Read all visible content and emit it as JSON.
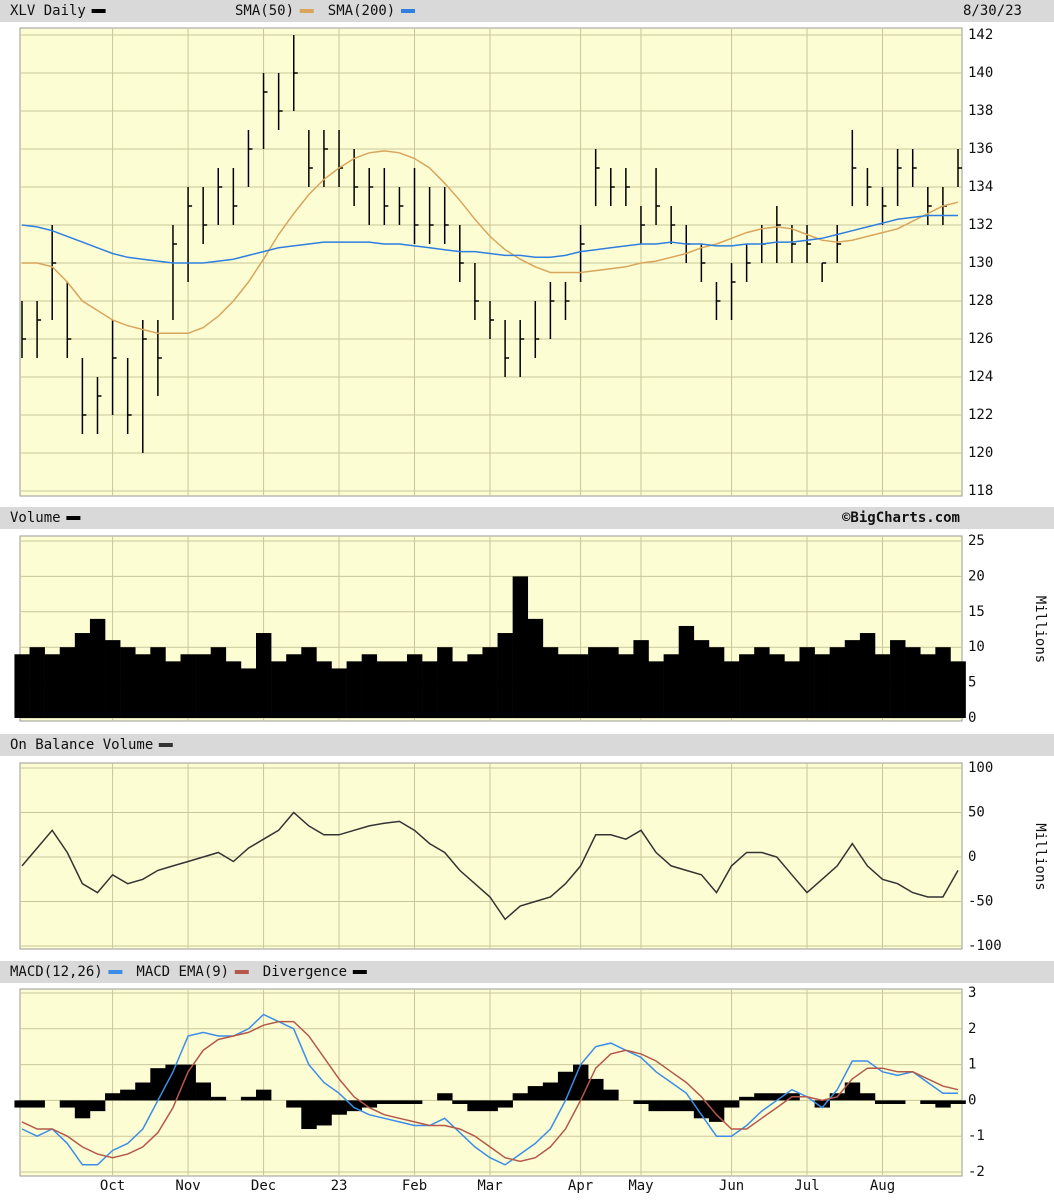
{
  "chart_data": [
    {
      "type": "ohlc",
      "title": "XLV Daily",
      "date": "8/30/23",
      "color": "#000000",
      "high": [
        128,
        128,
        132,
        129,
        125,
        124,
        127,
        125,
        127,
        127,
        132,
        134,
        134,
        135,
        135,
        137,
        140,
        140,
        142,
        137,
        137,
        137,
        136,
        135,
        135,
        134,
        135,
        134,
        134,
        132,
        130,
        128,
        127,
        127,
        128,
        129,
        129,
        132,
        136,
        135,
        135,
        133,
        135,
        133,
        132,
        131,
        129,
        130,
        131,
        132,
        133,
        132,
        132,
        130,
        132,
        137,
        135,
        134,
        136,
        136,
        134,
        134,
        136
      ],
      "low": [
        125,
        125,
        127,
        125,
        121,
        121,
        122,
        121,
        120,
        123,
        127,
        129,
        131,
        132,
        132,
        134,
        136,
        137,
        138,
        134,
        134,
        134,
        133,
        132,
        132,
        132,
        131,
        131,
        131,
        129,
        127,
        126,
        124,
        124,
        125,
        126,
        127,
        129,
        133,
        133,
        133,
        131,
        132,
        131,
        130,
        129,
        127,
        127,
        129,
        130,
        130,
        130,
        130,
        129,
        130,
        133,
        133,
        132,
        133,
        134,
        132,
        132,
        134
      ],
      "close": [
        126,
        127,
        130,
        126,
        122,
        123,
        125,
        122,
        126,
        125,
        131,
        133,
        132,
        134,
        133,
        136,
        139,
        138,
        140,
        135,
        136,
        135,
        134,
        134,
        133,
        133,
        132,
        132,
        132,
        130,
        128,
        127,
        125,
        126,
        126,
        128,
        128,
        131,
        135,
        134,
        134,
        132,
        133,
        132,
        131,
        130,
        128,
        129,
        130,
        131,
        132,
        131,
        131,
        130,
        131,
        135,
        134,
        133,
        135,
        135,
        133,
        133,
        135
      ],
      "series": [
        {
          "name": "SMA(50)",
          "color": "#d9a55c",
          "values": [
            130,
            130,
            129.8,
            129,
            128,
            127.5,
            127,
            126.7,
            126.5,
            126.3,
            126.3,
            126.3,
            126.6,
            127.2,
            128,
            129,
            130.2,
            131.5,
            132.6,
            133.6,
            134.4,
            135,
            135.5,
            135.8,
            135.9,
            135.8,
            135.5,
            135,
            134.2,
            133.3,
            132.3,
            131.4,
            130.7,
            130.2,
            129.8,
            129.5,
            129.5,
            129.5,
            129.6,
            129.7,
            129.8,
            130,
            130.1,
            130.3,
            130.5,
            130.8,
            131,
            131.3,
            131.6,
            131.8,
            131.9,
            131.8,
            131.5,
            131.2,
            131.1,
            131.2,
            131.4,
            131.6,
            131.8,
            132.2,
            132.6,
            133,
            133.2
          ]
        },
        {
          "name": "SMA(200)",
          "color": "#2f7fe0",
          "values": [
            132,
            131.9,
            131.7,
            131.4,
            131.1,
            130.8,
            130.5,
            130.3,
            130.2,
            130.1,
            130,
            130,
            130,
            130.1,
            130.2,
            130.4,
            130.6,
            130.8,
            130.9,
            131,
            131.1,
            131.1,
            131.1,
            131.1,
            131,
            131,
            130.9,
            130.8,
            130.7,
            130.6,
            130.6,
            130.5,
            130.4,
            130.4,
            130.3,
            130.3,
            130.4,
            130.6,
            130.7,
            130.8,
            130.9,
            131,
            131,
            131.1,
            131,
            131,
            130.9,
            130.9,
            131,
            131,
            131.1,
            131.1,
            131.2,
            131.3,
            131.5,
            131.7,
            131.9,
            132.1,
            132.3,
            132.4,
            132.5,
            132.5,
            132.5
          ]
        }
      ],
      "ylim": [
        118,
        142
      ],
      "yticks": [
        118,
        120,
        122,
        124,
        126,
        128,
        130,
        132,
        134,
        136,
        138,
        140,
        142
      ],
      "grid": true
    },
    {
      "type": "volume",
      "title": "Volume",
      "credit": "©BigCharts.com",
      "y_label": "Millions",
      "color": "#000000",
      "values": [
        9,
        10,
        9,
        10,
        12,
        14,
        11,
        10,
        9,
        10,
        8,
        9,
        9,
        10,
        8,
        7,
        12,
        8,
        9,
        10,
        8,
        7,
        8,
        9,
        8,
        8,
        9,
        8,
        10,
        8,
        9,
        10,
        12,
        20,
        14,
        10,
        9,
        9,
        10,
        10,
        9,
        11,
        8,
        9,
        13,
        11,
        10,
        8,
        9,
        10,
        9,
        8,
        10,
        9,
        10,
        11,
        12,
        9,
        11,
        10,
        9,
        10,
        8
      ],
      "ylim": [
        0,
        25
      ],
      "yticks": [
        0,
        5,
        10,
        15,
        20,
        25
      ],
      "grid": true
    },
    {
      "type": "line",
      "title": "On Balance Volume",
      "y_label": "Millions",
      "color": "#333333",
      "values": [
        -10,
        10,
        30,
        5,
        -30,
        -40,
        -20,
        -30,
        -25,
        -15,
        -10,
        -5,
        0,
        5,
        -5,
        10,
        20,
        30,
        50,
        35,
        25,
        25,
        30,
        35,
        38,
        40,
        30,
        15,
        5,
        -15,
        -30,
        -45,
        -70,
        -55,
        -50,
        -45,
        -30,
        -10,
        25,
        25,
        20,
        30,
        5,
        -10,
        -15,
        -20,
        -40,
        -10,
        5,
        5,
        0,
        -20,
        -40,
        -25,
        -10,
        15,
        -10,
        -25,
        -30,
        -40,
        -45,
        -45,
        -15
      ],
      "ylim": [
        -100,
        100
      ],
      "yticks": [
        -100,
        -50,
        0,
        50,
        100
      ],
      "grid": true
    },
    {
      "type": "macd",
      "categories": [
        null,
        null,
        null,
        null,
        null,
        null,
        "Oct",
        null,
        null,
        null,
        null,
        "Nov",
        null,
        null,
        null,
        null,
        "Dec",
        null,
        null,
        null,
        null,
        "23",
        null,
        null,
        null,
        null,
        "Feb",
        null,
        null,
        null,
        null,
        "Mar",
        null,
        null,
        null,
        null,
        null,
        "Apr",
        null,
        null,
        null,
        "May",
        null,
        null,
        null,
        null,
        null,
        "Jun",
        null,
        null,
        null,
        null,
        "Jul",
        null,
        null,
        null,
        null,
        "Aug",
        null,
        null,
        null,
        null,
        null
      ],
      "series": [
        {
          "name": "MACD(12,26)",
          "color": "#3b8de8",
          "values": [
            -0.8,
            -1.0,
            -0.8,
            -1.2,
            -1.8,
            -1.8,
            -1.4,
            -1.2,
            -0.8,
            0,
            0.8,
            1.8,
            1.9,
            1.8,
            1.8,
            2.0,
            2.4,
            2.2,
            2.0,
            1.0,
            0.5,
            0.2,
            -0.2,
            -0.4,
            -0.5,
            -0.6,
            -0.7,
            -0.7,
            -0.5,
            -0.9,
            -1.3,
            -1.6,
            -1.8,
            -1.5,
            -1.2,
            -0.8,
            0,
            1.0,
            1.5,
            1.6,
            1.4,
            1.2,
            0.8,
            0.5,
            0.2,
            -0.4,
            -1.0,
            -1.0,
            -0.7,
            -0.3,
            0,
            0.3,
            0.1,
            -0.2,
            0.3,
            1.1,
            1.1,
            0.8,
            0.7,
            0.8,
            0.5,
            0.2,
            0.2
          ]
        },
        {
          "name": "MACD EMA(9)",
          "color": "#b5584a",
          "values": [
            -0.6,
            -0.8,
            -0.8,
            -1.0,
            -1.3,
            -1.5,
            -1.6,
            -1.5,
            -1.3,
            -0.9,
            -0.2,
            0.8,
            1.4,
            1.7,
            1.8,
            1.9,
            2.1,
            2.2,
            2.2,
            1.8,
            1.2,
            0.6,
            0.1,
            -0.2,
            -0.4,
            -0.5,
            -0.6,
            -0.7,
            -0.7,
            -0.8,
            -1.0,
            -1.3,
            -1.6,
            -1.7,
            -1.6,
            -1.3,
            -0.8,
            0,
            0.9,
            1.3,
            1.4,
            1.3,
            1.1,
            0.8,
            0.5,
            0.1,
            -0.4,
            -0.8,
            -0.8,
            -0.5,
            -0.2,
            0.1,
            0.1,
            0,
            0.1,
            0.6,
            0.9,
            0.9,
            0.8,
            0.8,
            0.6,
            0.4,
            0.3
          ]
        },
        {
          "name": "Divergence",
          "color": "#000000",
          "bars": true,
          "values": [
            -0.2,
            -0.2,
            0,
            -0.2,
            -0.5,
            -0.3,
            0.2,
            0.3,
            0.5,
            0.9,
            1.0,
            1.0,
            0.5,
            0.1,
            0,
            0.1,
            0.3,
            0,
            -0.2,
            -0.8,
            -0.7,
            -0.4,
            -0.3,
            -0.2,
            -0.1,
            -0.1,
            -0.1,
            0,
            0.2,
            -0.1,
            -0.3,
            -0.3,
            -0.2,
            0.2,
            0.4,
            0.5,
            0.8,
            1.0,
            0.6,
            0.3,
            0,
            -0.1,
            -0.3,
            -0.3,
            -0.3,
            -0.5,
            -0.6,
            -0.2,
            0.1,
            0.2,
            0.2,
            0.2,
            0,
            -0.2,
            0.2,
            0.5,
            0.2,
            -0.1,
            -0.1,
            0,
            -0.1,
            -0.2,
            -0.1
          ]
        }
      ],
      "ylim": [
        -2,
        3
      ],
      "yticks": [
        -2,
        -1,
        0,
        1,
        2,
        3
      ],
      "grid": true
    }
  ]
}
